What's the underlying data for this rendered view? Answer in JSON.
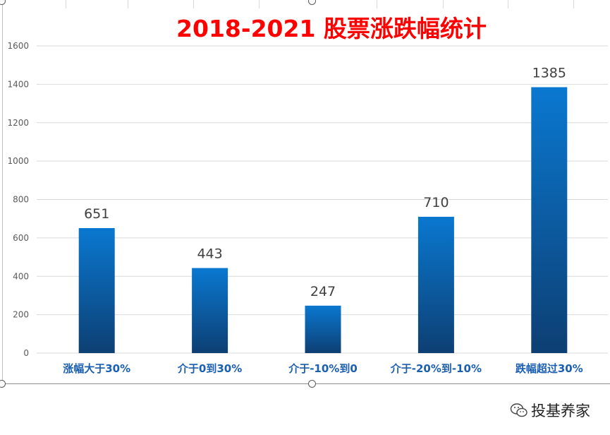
{
  "chart_data": {
    "type": "bar",
    "title": "2018-2021 股票涨跌幅统计",
    "categories": [
      "涨幅大于30%",
      "介于0到30%",
      "介于-10%到0",
      "介于-20%到-10%",
      "跌幅超过30%"
    ],
    "values": [
      651,
      443,
      247,
      710,
      1385
    ],
    "data_labels": [
      "651",
      "443",
      "247",
      "710",
      "1385"
    ],
    "xlabel": "",
    "ylabel": "",
    "ylim": [
      0,
      1600
    ],
    "yticks": [
      0,
      200,
      400,
      600,
      800,
      1000,
      1200,
      1400,
      1600
    ],
    "grid": true,
    "legend": "none",
    "colors": {
      "bar_top": "#0a78d0",
      "bar_bottom": "#0d3f73",
      "category_label": "#1b5fb0",
      "data_label": "#404040",
      "title": "#ff0000",
      "grid": "#d9d9d9",
      "tick_label": "#595959"
    }
  },
  "watermark": {
    "icon": "wechat-icon",
    "text": "投基养家"
  }
}
